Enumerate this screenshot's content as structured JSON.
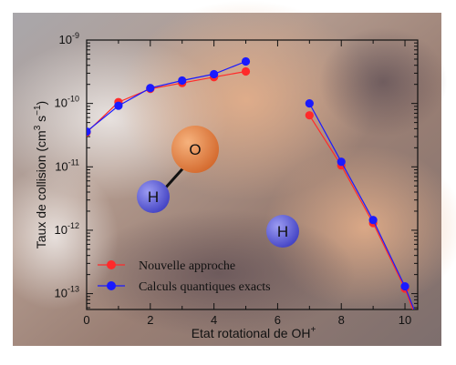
{
  "chart_data": {
    "type": "line",
    "xlabel": "Etat rotational de OH",
    "xlabel_sup": "+",
    "ylabel": "Taux de collision (cm",
    "ylabel_sup": "3",
    "ylabel_mid": " s",
    "ylabel_sup2": "−1",
    "ylabel_end": ")",
    "xlim": [
      0,
      10.4
    ],
    "ylim_log10": [
      -13.25,
      -9
    ],
    "y_scale": "log",
    "x_ticks": [
      "0",
      "2",
      "4",
      "6",
      "8",
      "10"
    ],
    "y_ticks": [
      {
        "base": "10",
        "exp": "-9"
      },
      {
        "base": "10",
        "exp": "-10"
      },
      {
        "base": "10",
        "exp": "-11"
      },
      {
        "base": "10",
        "exp": "-12"
      },
      {
        "base": "10",
        "exp": "-13"
      }
    ],
    "legend_position": "bottom-left",
    "series": [
      {
        "name": "Nouvelle approche",
        "color": "#ff2a2a",
        "segments": [
          [
            [
              0,
              3.5e-11
            ],
            [
              1,
              1.05e-10
            ],
            [
              2,
              1.7e-10
            ],
            [
              3,
              2.1e-10
            ],
            [
              4,
              2.6e-10
            ],
            [
              5,
              3.2e-10
            ]
          ],
          [
            [
              7,
              6.5e-11
            ],
            [
              8,
              1.05e-11
            ],
            [
              9,
              1.3e-12
            ],
            [
              10,
              1.2e-13
            ],
            [
              10.4,
              3.5e-14
            ]
          ]
        ]
      },
      {
        "name": "Calculs quantiques exacts",
        "color": "#1a1aff",
        "segments": [
          [
            [
              0,
              3.6e-11
            ],
            [
              1,
              9.2e-11
            ],
            [
              2,
              1.75e-10
            ],
            [
              3,
              2.3e-10
            ],
            [
              4,
              2.9e-10
            ],
            [
              5,
              4.6e-10
            ]
          ],
          [
            [
              7,
              1e-10
            ],
            [
              8,
              1.2e-11
            ],
            [
              9,
              1.45e-12
            ],
            [
              10,
              1.3e-13
            ],
            [
              10.4,
              4e-14
            ]
          ]
        ]
      }
    ],
    "annotations": [
      {
        "label": "O",
        "color": "#e8844a"
      },
      {
        "label": "H",
        "color": "#6a6ae0"
      },
      {
        "label": "H",
        "color": "#6a6ae0"
      }
    ]
  }
}
